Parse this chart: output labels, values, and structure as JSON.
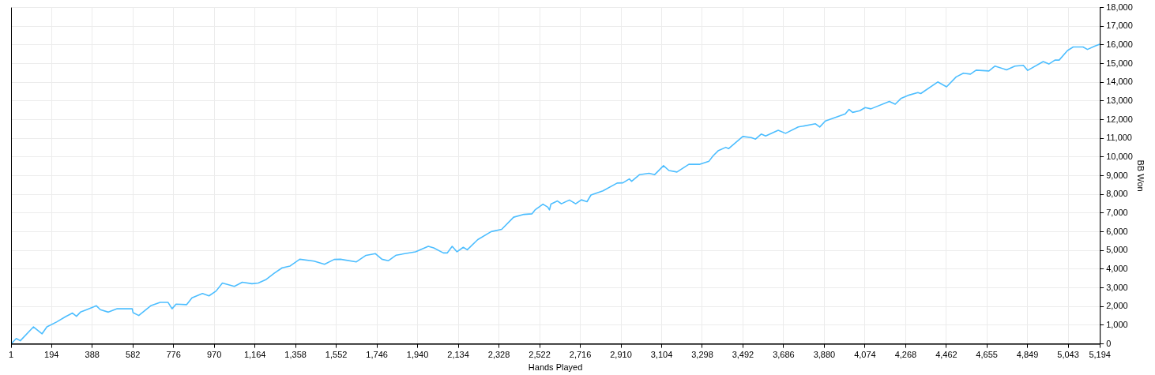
{
  "chart_data": {
    "type": "line",
    "xlabel": "Hands Played",
    "ylabel": "BB Won",
    "x": [
      1,
      26,
      45,
      108,
      149,
      172,
      218,
      260,
      294,
      313,
      332,
      362,
      408,
      427,
      465,
      507,
      579,
      583,
      610,
      667,
      712,
      750,
      769,
      788,
      838,
      864,
      914,
      945,
      979,
      1009,
      1066,
      1104,
      1150,
      1180,
      1218,
      1256,
      1294,
      1332,
      1378,
      1446,
      1496,
      1542,
      1572,
      1648,
      1694,
      1739,
      1770,
      1800,
      1838,
      1930,
      1991,
      2017,
      2063,
      2082,
      2105,
      2128,
      2158,
      2177,
      2227,
      2291,
      2341,
      2398,
      2447,
      2485,
      2500,
      2538,
      2561,
      2569,
      2576,
      2607,
      2626,
      2664,
      2694,
      2721,
      2748,
      2767,
      2824,
      2892,
      2919,
      2950,
      2961,
      2999,
      3044,
      3071,
      3113,
      3139,
      3177,
      3234,
      3284,
      3330,
      3349,
      3375,
      3410,
      3423,
      3491,
      3531,
      3552,
      3579,
      3600,
      3660,
      3695,
      3756,
      3838,
      3858,
      3885,
      3946,
      3980,
      3998,
      4015,
      4049,
      4075,
      4102,
      4190,
      4218,
      4245,
      4285,
      4326,
      4340,
      4421,
      4463,
      4509,
      4543,
      4577,
      4604,
      4665,
      4694,
      4749,
      4789,
      4829,
      4850,
      4924,
      4951,
      4980,
      5000,
      5040,
      5067,
      5114,
      5135,
      5169,
      5194
    ],
    "series": [
      {
        "color": "#4dbeff",
        "values": [
          0,
          290,
          170,
          910,
          540,
          910,
          1170,
          1450,
          1650,
          1480,
          1700,
          1830,
          2040,
          1830,
          1700,
          1880,
          1880,
          1670,
          1520,
          2040,
          2220,
          2220,
          1880,
          2130,
          2100,
          2470,
          2700,
          2570,
          2830,
          3260,
          3080,
          3300,
          3220,
          3260,
          3450,
          3780,
          4070,
          4170,
          4530,
          4430,
          4260,
          4520,
          4530,
          4390,
          4740,
          4830,
          4530,
          4450,
          4750,
          4930,
          5220,
          5140,
          4870,
          4870,
          5220,
          4930,
          5170,
          5040,
          5580,
          6010,
          6130,
          6780,
          6930,
          6960,
          7170,
          7480,
          7320,
          7170,
          7480,
          7650,
          7500,
          7700,
          7500,
          7710,
          7610,
          7970,
          8190,
          8610,
          8620,
          8830,
          8700,
          9060,
          9130,
          9060,
          9540,
          9280,
          9200,
          9610,
          9610,
          9780,
          10060,
          10350,
          10520,
          10450,
          11100,
          11040,
          10960,
          11230,
          11130,
          11430,
          11270,
          11610,
          11780,
          11610,
          11930,
          12170,
          12310,
          12550,
          12390,
          12480,
          12650,
          12580,
          12980,
          12830,
          13130,
          13320,
          13450,
          13400,
          14020,
          13760,
          14290,
          14490,
          14440,
          14650,
          14610,
          14870,
          14670,
          14870,
          14910,
          14640,
          15110,
          14980,
          15190,
          15190,
          15700,
          15890,
          15890,
          15760,
          15930,
          16040
        ]
      }
    ],
    "xlim": [
      1,
      5194
    ],
    "xticks": [
      1,
      194,
      388,
      582,
      776,
      970,
      {
        "value": 1164,
        "label": "1,164"
      },
      {
        "value": 1358,
        "label": "1,358"
      },
      {
        "value": 1552,
        "label": "1,552"
      },
      {
        "value": 1746,
        "label": "1,746"
      },
      {
        "value": 1940,
        "label": "1,940"
      },
      {
        "value": 2134,
        "label": "2,134"
      },
      {
        "value": 2328,
        "label": "2,328"
      },
      {
        "value": 2522,
        "label": "2,522"
      },
      {
        "value": 2716,
        "label": "2,716"
      },
      {
        "value": 2910,
        "label": "2,910"
      },
      {
        "value": 3104,
        "label": "3,104"
      },
      {
        "value": 3298,
        "label": "3,298"
      },
      {
        "value": 3492,
        "label": "3,492"
      },
      {
        "value": 3686,
        "label": "3,686"
      },
      {
        "value": 3880,
        "label": "3,880"
      },
      {
        "value": 4074,
        "label": "4,074"
      },
      {
        "value": 4268,
        "label": "4,268"
      },
      {
        "value": 4462,
        "label": "4,462"
      },
      {
        "value": 4655,
        "label": "4,655"
      },
      {
        "value": 4849,
        "label": "4,849"
      },
      {
        "value": 5043,
        "label": "5,043"
      },
      {
        "value": 5194,
        "label": "5,194"
      }
    ],
    "ylim": [
      0,
      18000
    ],
    "yticks": [
      0,
      {
        "value": 1000,
        "label": "1,000"
      },
      {
        "value": 2000,
        "label": "2,000"
      },
      {
        "value": 3000,
        "label": "3,000"
      },
      {
        "value": 4000,
        "label": "4,000"
      },
      {
        "value": 5000,
        "label": "5,000"
      },
      {
        "value": 6000,
        "label": "6,000"
      },
      {
        "value": 7000,
        "label": "7,000"
      },
      {
        "value": 8000,
        "label": "8,000"
      },
      {
        "value": 9000,
        "label": "9,000"
      },
      {
        "value": 10000,
        "label": "10,000"
      },
      {
        "value": 11000,
        "label": "11,000"
      },
      {
        "value": 12000,
        "label": "12,000"
      },
      {
        "value": 13000,
        "label": "13,000"
      },
      {
        "value": 14000,
        "label": "14,000"
      },
      {
        "value": 15000,
        "label": "15,000"
      },
      {
        "value": 16000,
        "label": "16,000"
      },
      {
        "value": 17000,
        "label": "17,000"
      },
      {
        "value": 18000,
        "label": "18,000"
      }
    ],
    "grid": true,
    "legend": false,
    "marker": "none",
    "line_style": "solid"
  }
}
